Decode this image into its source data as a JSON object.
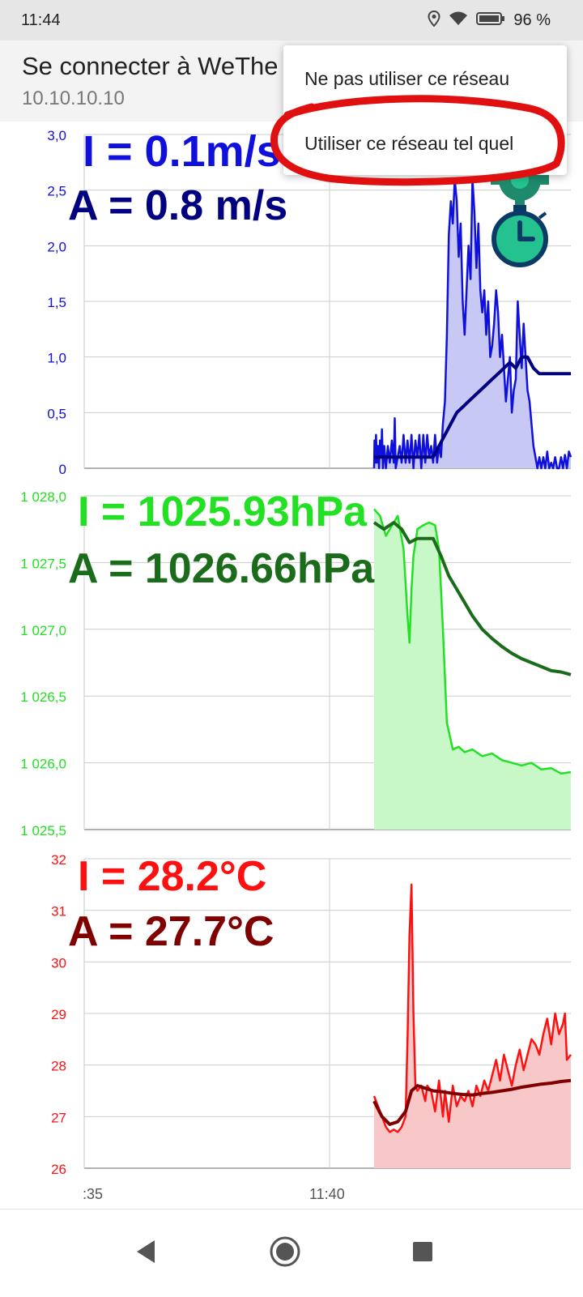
{
  "status_bar": {
    "time": "11:44",
    "battery": "96 %",
    "icons": [
      "location-icon",
      "wifi-icon",
      "battery-icon"
    ]
  },
  "header": {
    "title": "Se connecter à WeThe",
    "subtitle": "10.10.10.10"
  },
  "popup_menu": {
    "items": [
      "Ne pas utiliser ce réseau",
      "Utiliser ce réseau tel quel"
    ],
    "highlighted_item": 1,
    "highlight_color": "#e01010"
  },
  "overlays": {
    "wind_instant": "I = 0.1m/s",
    "wind_average": "A = 0.8 m/s",
    "pressure_instant": "I = 1025.93hPa",
    "pressure_average": "A = 1026.66hPa",
    "temp_instant": "I = 28.2°C",
    "temp_average": "A = 27.7°C"
  },
  "icons": [
    "settings-gear-icon",
    "stopwatch-icon"
  ],
  "x_axis": {
    "labels": [
      ":35",
      "11:40"
    ]
  },
  "nav_bar": {
    "buttons": [
      "back-button",
      "home-button",
      "recents-button"
    ]
  },
  "chart_data": [
    {
      "type": "area",
      "name": "wind",
      "color": "#1010dd",
      "avg_color": "#000080",
      "fill": "#c8c8f5",
      "y_ticks": [
        "3,0",
        "2,5",
        "2,0",
        "1,5",
        "1,0",
        "0,5",
        "0"
      ],
      "ylim": [
        0,
        3.0
      ],
      "xlim": [
        0,
        100
      ],
      "series": [
        {
          "values": [
            [
              0,
              0
            ],
            [
              0.2,
              0.25
            ],
            [
              0.6,
              0.05
            ],
            [
              1.0,
              0.3
            ],
            [
              1.4,
              0.05
            ],
            [
              2.0,
              0.2
            ],
            [
              2.5,
              0
            ],
            [
              3.0,
              0.25
            ],
            [
              3.6,
              0.1
            ],
            [
              4.0,
              0.35
            ],
            [
              4.5,
              0
            ],
            [
              5.2,
              0.2
            ],
            [
              6,
              0
            ],
            [
              7,
              0.2
            ],
            [
              8,
              0.05
            ],
            [
              9,
              0.25
            ],
            [
              10,
              0.05
            ],
            [
              10.5,
              0.45
            ],
            [
              11,
              0
            ],
            [
              12,
              0.1
            ],
            [
              13,
              0.2
            ],
            [
              14,
              0.05
            ],
            [
              15,
              0.3
            ],
            [
              16,
              0.05
            ],
            [
              17,
              0.25
            ],
            [
              18,
              0.05
            ],
            [
              19,
              0.3
            ],
            [
              20,
              0
            ],
            [
              21,
              0.25
            ],
            [
              22,
              0.1
            ],
            [
              23,
              0.3
            ],
            [
              24,
              0
            ],
            [
              25,
              0.3
            ],
            [
              26,
              0.05
            ],
            [
              27,
              0.3
            ],
            [
              28,
              0.1
            ],
            [
              29,
              0.2
            ],
            [
              30,
              0.05
            ],
            [
              31,
              0.3
            ],
            [
              32,
              0.05
            ],
            [
              33,
              0.2
            ],
            [
              34,
              0.1
            ],
            [
              35,
              0.4
            ],
            [
              36,
              0.6
            ],
            [
              37,
              1.2
            ],
            [
              38,
              2.1
            ],
            [
              39,
              2.4
            ],
            [
              40,
              2.2
            ],
            [
              41,
              2.6
            ],
            [
              42,
              2.4
            ],
            [
              43,
              1.9
            ],
            [
              44,
              2.2
            ],
            [
              45,
              1.5
            ],
            [
              46,
              1.2
            ],
            [
              47,
              1.6
            ],
            [
              48,
              2.0
            ],
            [
              49,
              1.7
            ],
            [
              50,
              2.6
            ],
            [
              51,
              2.3
            ],
            [
              52,
              1.8
            ],
            [
              53,
              2.2
            ],
            [
              54,
              1.6
            ],
            [
              55,
              1.4
            ],
            [
              56,
              1.6
            ],
            [
              57,
              1.2
            ],
            [
              58,
              1.5
            ],
            [
              59,
              1.0
            ],
            [
              60,
              1.1
            ],
            [
              61,
              1.3
            ],
            [
              62,
              1.6
            ],
            [
              63,
              1.4
            ],
            [
              64,
              1.0
            ],
            [
              65,
              1.2
            ],
            [
              66,
              0.9
            ],
            [
              67,
              0.6
            ],
            [
              68,
              0.8
            ],
            [
              69,
              1.0
            ],
            [
              70,
              0.5
            ],
            [
              71,
              0.7
            ],
            [
              72,
              0.8
            ],
            [
              73,
              1.5
            ],
            [
              74,
              1.2
            ],
            [
              75,
              0.9
            ],
            [
              76,
              1.3
            ],
            [
              77,
              1.0
            ],
            [
              78,
              0.7
            ],
            [
              79,
              0.6
            ],
            [
              80,
              0.4
            ],
            [
              81,
              0.2
            ],
            [
              82,
              0.1
            ],
            [
              83,
              0
            ],
            [
              84,
              0.1
            ],
            [
              85,
              0
            ],
            [
              86,
              0.1
            ],
            [
              87,
              0
            ],
            [
              88,
              0.15
            ],
            [
              89,
              0
            ],
            [
              90,
              0.05
            ],
            [
              91,
              0
            ],
            [
              92,
              0.1
            ],
            [
              93,
              0
            ],
            [
              94,
              0
            ],
            [
              95,
              0.1
            ],
            [
              96,
              0
            ],
            [
              97,
              0.12
            ],
            [
              98,
              0
            ],
            [
              99,
              0.15
            ],
            [
              100,
              0.1
            ]
          ]
        },
        {
          "values": [
            [
              0,
              0.1
            ],
            [
              30,
              0.1
            ],
            [
              33,
              0.2
            ],
            [
              36,
              0.3
            ],
            [
              39,
              0.4
            ],
            [
              42,
              0.5
            ],
            [
              45,
              0.55
            ],
            [
              48,
              0.6
            ],
            [
              51,
              0.65
            ],
            [
              54,
              0.7
            ],
            [
              57,
              0.75
            ],
            [
              60,
              0.8
            ],
            [
              63,
              0.85
            ],
            [
              66,
              0.9
            ],
            [
              69,
              0.95
            ],
            [
              72,
              0.9
            ],
            [
              75,
              1.0
            ],
            [
              78,
              1.0
            ],
            [
              81,
              0.9
            ],
            [
              84,
              0.85
            ],
            [
              87,
              0.85
            ],
            [
              100,
              0.85
            ]
          ]
        }
      ]
    },
    {
      "type": "area",
      "name": "pressure",
      "color": "#22e022",
      "avg_color": "#1a6b1a",
      "fill": "#c8f8c8",
      "y_ticks": [
        "1 028,0",
        "1 027,5",
        "1 027,0",
        "1 026,5",
        "1 026,0",
        "1 025,5"
      ],
      "ylim": [
        1025.5,
        1028.0
      ],
      "xlim": [
        0,
        100
      ],
      "series": [
        {
          "values": [
            [
              0,
              1027.9
            ],
            [
              3,
              1027.85
            ],
            [
              6,
              1027.7
            ],
            [
              8,
              1027.75
            ],
            [
              10,
              1027.8
            ],
            [
              12,
              1027.85
            ],
            [
              15,
              1027.6
            ],
            [
              17,
              1027.1
            ],
            [
              18,
              1026.9
            ],
            [
              19,
              1027.3
            ],
            [
              20,
              1027.55
            ],
            [
              22,
              1027.75
            ],
            [
              25,
              1027.78
            ],
            [
              28,
              1027.8
            ],
            [
              31,
              1027.78
            ],
            [
              33,
              1027.6
            ],
            [
              35,
              1027.0
            ],
            [
              37,
              1026.3
            ],
            [
              40,
              1026.1
            ],
            [
              43,
              1026.12
            ],
            [
              46,
              1026.08
            ],
            [
              50,
              1026.1
            ],
            [
              55,
              1026.05
            ],
            [
              60,
              1026.07
            ],
            [
              65,
              1026.02
            ],
            [
              70,
              1026.0
            ],
            [
              75,
              1025.98
            ],
            [
              80,
              1026.0
            ],
            [
              85,
              1025.95
            ],
            [
              90,
              1025.96
            ],
            [
              95,
              1025.92
            ],
            [
              100,
              1025.93
            ]
          ]
        },
        {
          "values": [
            [
              0,
              1027.8
            ],
            [
              5,
              1027.75
            ],
            [
              10,
              1027.8
            ],
            [
              14,
              1027.75
            ],
            [
              18,
              1027.65
            ],
            [
              22,
              1027.68
            ],
            [
              26,
              1027.68
            ],
            [
              30,
              1027.68
            ],
            [
              34,
              1027.55
            ],
            [
              38,
              1027.4
            ],
            [
              42,
              1027.3
            ],
            [
              46,
              1027.2
            ],
            [
              50,
              1027.1
            ],
            [
              55,
              1027.0
            ],
            [
              60,
              1026.93
            ],
            [
              65,
              1026.87
            ],
            [
              70,
              1026.82
            ],
            [
              75,
              1026.78
            ],
            [
              80,
              1026.75
            ],
            [
              85,
              1026.72
            ],
            [
              90,
              1026.69
            ],
            [
              95,
              1026.68
            ],
            [
              100,
              1026.66
            ]
          ]
        }
      ]
    },
    {
      "type": "area",
      "name": "temperature",
      "color": "#ff1010",
      "avg_color": "#800000",
      "fill": "#f8c8c8",
      "y_ticks": [
        "32",
        "31",
        "30",
        "29",
        "28",
        "27",
        "26"
      ],
      "ylim": [
        26,
        32
      ],
      "xlim": [
        0,
        100
      ],
      "series": [
        {
          "values": [
            [
              0,
              27.4
            ],
            [
              2,
              27.2
            ],
            [
              4,
              27.0
            ],
            [
              6,
              26.8
            ],
            [
              8,
              26.7
            ],
            [
              10,
              26.75
            ],
            [
              12,
              26.7
            ],
            [
              14,
              26.8
            ],
            [
              16,
              27.0
            ],
            [
              17,
              28.5
            ],
            [
              18,
              30.5
            ],
            [
              19,
              31.5
            ],
            [
              20,
              29.0
            ],
            [
              21,
              27.6
            ],
            [
              22,
              27.5
            ],
            [
              24,
              27.6
            ],
            [
              26,
              27.3
            ],
            [
              27,
              27.6
            ],
            [
              29,
              27.5
            ],
            [
              31,
              27.1
            ],
            [
              33,
              27.7
            ],
            [
              35,
              27.0
            ],
            [
              36,
              27.5
            ],
            [
              38,
              26.9
            ],
            [
              40,
              27.6
            ],
            [
              42,
              27.2
            ],
            [
              44,
              27.4
            ],
            [
              46,
              27.3
            ],
            [
              48,
              27.5
            ],
            [
              50,
              27.2
            ],
            [
              52,
              27.6
            ],
            [
              54,
              27.4
            ],
            [
              56,
              27.7
            ],
            [
              58,
              27.5
            ],
            [
              60,
              27.8
            ],
            [
              62,
              28.1
            ],
            [
              64,
              27.7
            ],
            [
              66,
              28.2
            ],
            [
              68,
              27.9
            ],
            [
              70,
              27.6
            ],
            [
              72,
              28.0
            ],
            [
              74,
              28.3
            ],
            [
              76,
              27.9
            ],
            [
              78,
              28.2
            ],
            [
              80,
              28.5
            ],
            [
              82,
              28.4
            ],
            [
              84,
              28.2
            ],
            [
              86,
              28.6
            ],
            [
              88,
              28.9
            ],
            [
              90,
              28.4
            ],
            [
              92,
              29.0
            ],
            [
              94,
              28.6
            ],
            [
              96,
              28.8
            ],
            [
              97,
              29.0
            ],
            [
              98,
              28.1
            ],
            [
              100,
              28.2
            ]
          ]
        },
        {
          "values": [
            [
              0,
              27.3
            ],
            [
              4,
              27.0
            ],
            [
              8,
              26.85
            ],
            [
              12,
              26.9
            ],
            [
              16,
              27.1
            ],
            [
              19,
              27.5
            ],
            [
              22,
              27.6
            ],
            [
              26,
              27.55
            ],
            [
              30,
              27.5
            ],
            [
              35,
              27.48
            ],
            [
              40,
              27.45
            ],
            [
              45,
              27.43
            ],
            [
              50,
              27.42
            ],
            [
              55,
              27.45
            ],
            [
              60,
              27.47
            ],
            [
              65,
              27.5
            ],
            [
              70,
              27.53
            ],
            [
              75,
              27.57
            ],
            [
              80,
              27.6
            ],
            [
              85,
              27.63
            ],
            [
              90,
              27.65
            ],
            [
              95,
              27.68
            ],
            [
              100,
              27.7
            ]
          ]
        }
      ]
    }
  ]
}
